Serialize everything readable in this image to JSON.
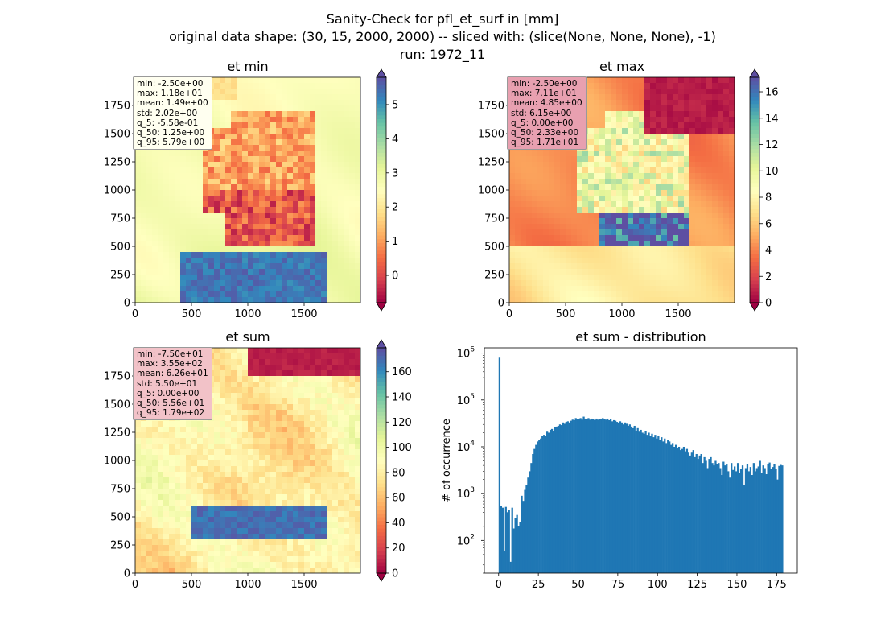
{
  "figure": {
    "title_lines": [
      "Sanity-Check for pfl_et_surf in [mm]",
      "original data shape: (30, 15, 2000, 2000) -- sliced with: (slice(None, None, None), -1)",
      "run: 1972_11"
    ]
  },
  "chart_data": [
    {
      "type": "heatmap",
      "title": "et min",
      "xticks": [
        0,
        500,
        1000,
        1500
      ],
      "yticks": [
        0,
        250,
        500,
        750,
        1000,
        1250,
        1500,
        1750
      ],
      "xlim": [
        0,
        2000
      ],
      "ylim": [
        0,
        2000
      ],
      "colormap": "Spectral",
      "colorbar": {
        "ticks": [
          0,
          1,
          2,
          3,
          4,
          5
        ],
        "range": [
          -0.8,
          5.8
        ],
        "extend": "both"
      },
      "stats": [
        "min: -2.50e+00",
        "max: 1.18e+01",
        "mean: 1.49e+00",
        "std: 2.02e+00",
        "q_5: -5.58e-01",
        "q_50: 1.25e+00",
        "q_95: 5.79e+00"
      ],
      "stats_box_color": "#fffff0"
    },
    {
      "type": "heatmap",
      "title": "et max",
      "xticks": [
        0,
        500,
        1000,
        1500
      ],
      "yticks": [
        0,
        250,
        500,
        750,
        1000,
        1250,
        1500,
        1750
      ],
      "xlim": [
        0,
        2000
      ],
      "ylim": [
        0,
        2000
      ],
      "colormap": "Spectral",
      "colorbar": {
        "ticks": [
          0,
          2,
          4,
          6,
          8,
          10,
          12,
          14,
          16
        ],
        "range": [
          0,
          17.1
        ],
        "extend": "both"
      },
      "stats": [
        "min: -2.50e+00",
        "max: 7.11e+01",
        "mean: 4.85e+00",
        "std: 6.15e+00",
        "q_5: 0.00e+00",
        "q_50: 2.33e+00",
        "q_95: 1.71e+01"
      ],
      "stats_box_color": "#e8a0b0"
    },
    {
      "type": "heatmap",
      "title": "et sum",
      "xticks": [
        0,
        500,
        1000,
        1500
      ],
      "yticks": [
        0,
        250,
        500,
        750,
        1000,
        1250,
        1500,
        1750
      ],
      "xlim": [
        0,
        2000
      ],
      "ylim": [
        0,
        2000
      ],
      "colormap": "Spectral",
      "colorbar": {
        "ticks": [
          0,
          20,
          40,
          60,
          80,
          100,
          120,
          140,
          160
        ],
        "range": [
          0,
          179
        ],
        "extend": "both"
      },
      "stats": [
        "min: -7.50e+01",
        "max: 3.55e+02",
        "mean: 6.26e+01",
        "std: 5.50e+01",
        "q_5: 0.00e+00",
        "q_50: 5.56e+01",
        "q_95: 1.79e+02"
      ],
      "stats_box_color": "#f2c2c8"
    },
    {
      "type": "bar",
      "title": "et sum - distribution",
      "ylabel": "# of occurrence",
      "yscale": "log",
      "ylim": [
        20,
        1300000
      ],
      "xlim": [
        -9,
        188
      ],
      "xticks": [
        0,
        25,
        50,
        75,
        100,
        125,
        150,
        175
      ],
      "ytick_exponents": [
        2,
        3,
        4,
        5,
        6
      ],
      "bar_color": "#1f77b4",
      "bin_width": 1,
      "x": [
        0,
        1,
        2,
        3,
        4,
        5,
        6,
        7,
        8,
        9,
        10,
        11,
        12,
        13,
        14,
        15,
        16,
        17,
        18,
        19,
        20,
        21,
        22,
        23,
        24,
        25,
        26,
        27,
        28,
        29,
        30,
        31,
        32,
        33,
        34,
        35,
        36,
        37,
        38,
        39,
        40,
        41,
        42,
        43,
        44,
        45,
        46,
        47,
        48,
        49,
        50,
        51,
        52,
        53,
        54,
        55,
        56,
        57,
        58,
        59,
        60,
        61,
        62,
        63,
        64,
        65,
        66,
        67,
        68,
        69,
        70,
        71,
        72,
        73,
        74,
        75,
        76,
        77,
        78,
        79,
        80,
        81,
        82,
        83,
        84,
        85,
        86,
        87,
        88,
        89,
        90,
        91,
        92,
        93,
        94,
        95,
        96,
        97,
        98,
        99,
        100,
        101,
        102,
        103,
        104,
        105,
        106,
        107,
        108,
        109,
        110,
        111,
        112,
        113,
        114,
        115,
        116,
        117,
        118,
        119,
        120,
        121,
        122,
        123,
        124,
        125,
        126,
        127,
        128,
        129,
        130,
        131,
        132,
        133,
        134,
        135,
        136,
        137,
        138,
        139,
        140,
        141,
        142,
        143,
        144,
        145,
        146,
        147,
        148,
        149,
        150,
        151,
        152,
        153,
        154,
        155,
        156,
        157,
        158,
        159,
        160,
        161,
        162,
        163,
        164,
        165,
        166,
        167,
        168,
        169,
        170,
        171,
        172,
        173,
        174,
        175,
        176,
        177,
        178
      ],
      "values": [
        800000,
        550,
        500,
        60,
        520,
        400,
        450,
        35,
        500,
        180,
        300,
        350,
        200,
        250,
        900,
        700,
        1200,
        1500,
        2200,
        3000,
        4500,
        7000,
        9000,
        11000,
        13000,
        14000,
        15000,
        17000,
        18000,
        17000,
        21000,
        20000,
        23000,
        24000,
        22000,
        26000,
        27000,
        28000,
        30000,
        29000,
        33000,
        31000,
        34000,
        35000,
        33000,
        36000,
        38000,
        37000,
        41000,
        39000,
        40000,
        41000,
        38000,
        44000,
        40000,
        39000,
        41000,
        38000,
        40000,
        39000,
        37000,
        40000,
        38000,
        39000,
        40000,
        41000,
        39000,
        38000,
        40000,
        37000,
        39000,
        35000,
        37000,
        36000,
        34000,
        32000,
        35000,
        33000,
        30000,
        33000,
        31000,
        28000,
        30000,
        27000,
        25000,
        28000,
        22000,
        25000,
        21000,
        23000,
        20000,
        19000,
        22000,
        18000,
        20000,
        17000,
        19000,
        16000,
        18000,
        15000,
        17000,
        14000,
        16000,
        13000,
        15000,
        12000,
        14000,
        13000,
        11000,
        12000,
        10000,
        11000,
        9500,
        10000,
        8500,
        9000,
        10000,
        8000,
        9000,
        7500,
        6500,
        7500,
        8500,
        6000,
        7000,
        5500,
        6500,
        7000,
        4500,
        6000,
        5000,
        3500,
        5500,
        6000,
        4500,
        4000,
        5000,
        4200,
        4500,
        3500,
        2500,
        4800,
        4000,
        4200,
        3000,
        2200,
        4500,
        3200,
        3800,
        3000,
        4500,
        2800,
        3400,
        4000,
        1500,
        3500,
        4200,
        3000,
        3700,
        2500,
        4500,
        3000,
        3500,
        3800,
        5000,
        2800,
        4000,
        3500,
        2600,
        4200,
        4600,
        3300,
        3700,
        4200,
        3400,
        2000,
        3900,
        4100,
        4000
      ]
    }
  ]
}
